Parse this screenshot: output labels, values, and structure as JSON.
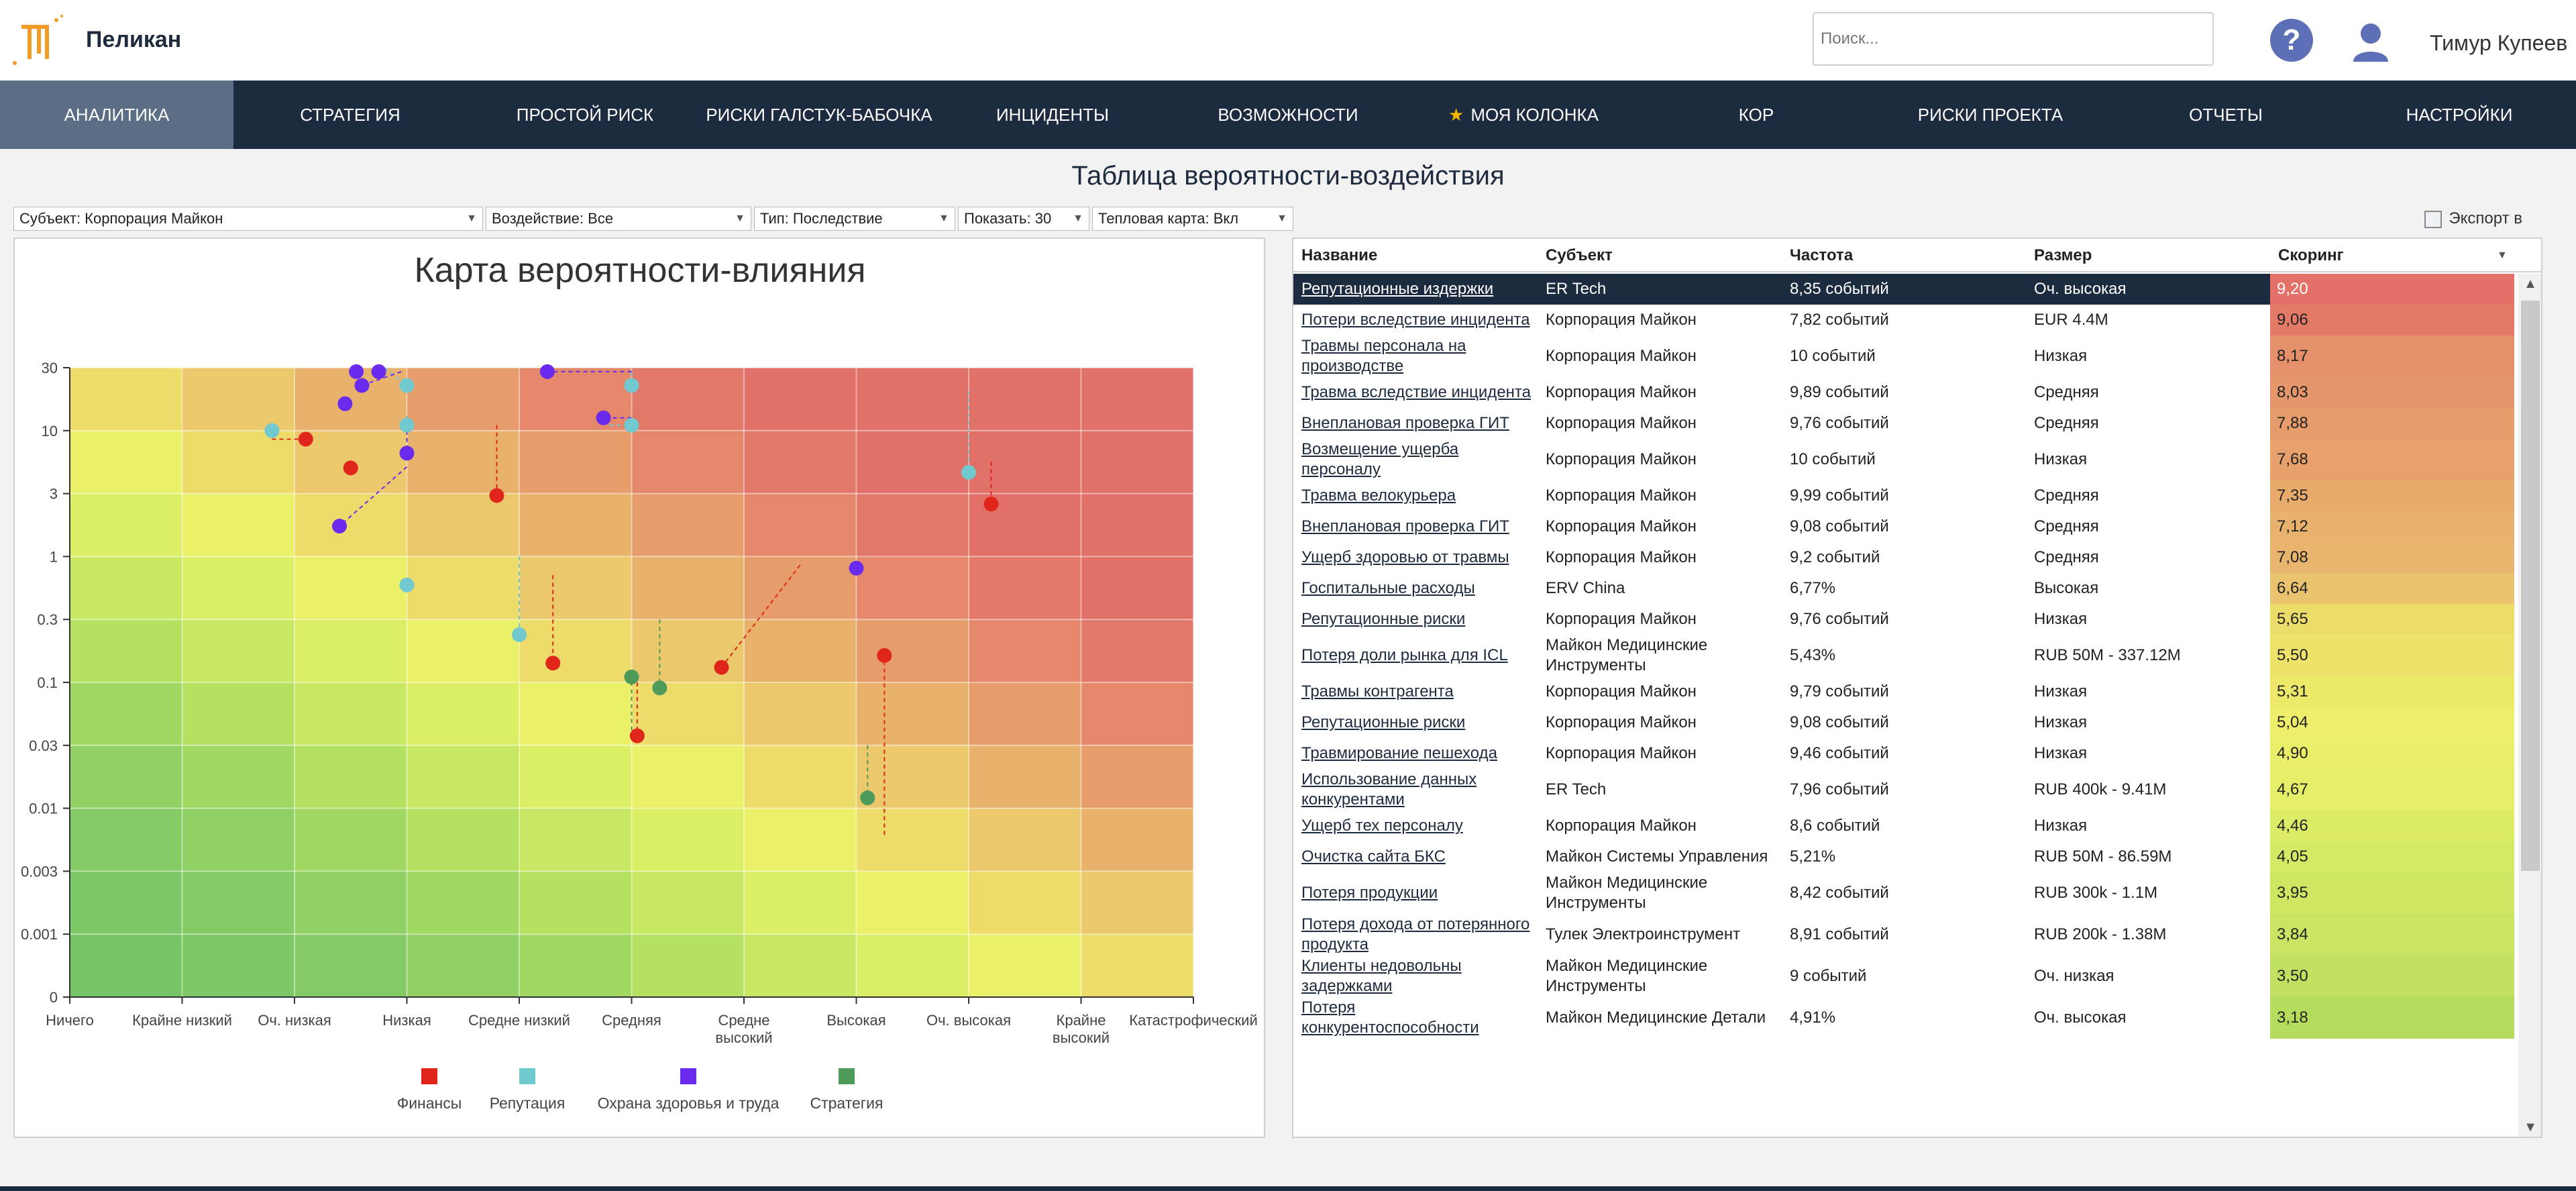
{
  "app": {
    "name": "Пеликан"
  },
  "header": {
    "search_placeholder": "Поиск...",
    "user_name": "Тимур Купеев",
    "help_glyph": "?"
  },
  "nav": [
    {
      "label": "АНАЛИТИКА",
      "active": true
    },
    {
      "label": "СТРАТЕГИЯ"
    },
    {
      "label": "ПРОСТОЙ РИСК"
    },
    {
      "label": "РИСКИ ГАЛСТУК-БАБОЧКА"
    },
    {
      "label": "ИНЦИДЕНТЫ"
    },
    {
      "label": "ВОЗМОЖНОСТИ"
    },
    {
      "label": "МОЯ КОЛОНКА",
      "icon": "star-icon"
    },
    {
      "label": "КОР"
    },
    {
      "label": "РИСКИ ПРОЕКТА"
    },
    {
      "label": "ОТЧЕТЫ"
    },
    {
      "label": "НАСТРОЙКИ"
    }
  ],
  "page": {
    "title": "Таблица вероятности-воздействия"
  },
  "filters": {
    "subject": "Субъект: Корпорация Майкон",
    "impact": "Воздействие: Все",
    "type": "Тип: Последствие",
    "show": "Показать: 30",
    "heatmap": "Тепловая карта: Вкл"
  },
  "export_label": "Экспорт в",
  "colors": {
    "nav_bg": "#1c2b40",
    "finance": "#e0261a",
    "reputation": "#6fc9cf",
    "health": "#6a2bef",
    "strategy": "#4e9a5a"
  },
  "chart_data": {
    "type": "scatter",
    "title": "Карта вероятности-влияния",
    "x_categories": [
      "Ничего",
      "Крайне низкий",
      "Оч. низкая",
      "Низкая",
      "Средне низкий",
      "Средняя",
      "Средне высокий",
      "Высокая",
      "Оч. высокая",
      "Крайне высокий",
      "Катастрофический"
    ],
    "y_ticks": [
      "0",
      "0.001",
      "0.003",
      "0.01",
      "0.03",
      "0.1",
      "0.3",
      "1",
      "3",
      "10",
      "30"
    ],
    "y_scale": "log",
    "grid": true,
    "legend_position": "bottom",
    "heatmap": true,
    "series": [
      {
        "name": "Финансы",
        "color": "#e0261a",
        "points": [
          {
            "x": 2.1,
            "y": 8.5,
            "from": [
              1.8,
              8.5
            ]
          },
          {
            "x": 2.5,
            "y": 4.9
          },
          {
            "x": 3.8,
            "y": 2.9,
            "from": [
              3.8,
              11
            ]
          },
          {
            "x": 4.3,
            "y": 0.14,
            "from": [
              4.3,
              0.7
            ]
          },
          {
            "x": 5.05,
            "y": 0.036,
            "from": [
              5.05,
              0.1
            ]
          },
          {
            "x": 5.8,
            "y": 0.13,
            "from": [
              6.5,
              0.85
            ]
          },
          {
            "x": 7.25,
            "y": 0.16,
            "from": [
              7.25,
              0.006
            ]
          },
          {
            "x": 8.2,
            "y": 2.5,
            "from": [
              8.2,
              5.5
            ]
          }
        ]
      },
      {
        "name": "Репутация",
        "color": "#6fc9cf",
        "points": [
          {
            "x": 1.8,
            "y": 10
          },
          {
            "x": 3.0,
            "y": 22,
            "from": [
              2.8,
              30
            ]
          },
          {
            "x": 3.0,
            "y": 11,
            "from": [
              3.0,
              13
            ]
          },
          {
            "x": 3.0,
            "y": 0.58
          },
          {
            "x": 4.0,
            "y": 0.23,
            "from": [
              4.0,
              1.0
            ]
          },
          {
            "x": 5.0,
            "y": 22,
            "from": [
              5.0,
              28
            ]
          },
          {
            "x": 5.0,
            "y": 11,
            "from": [
              4.8,
              11
            ]
          },
          {
            "x": 8.0,
            "y": 4.5,
            "from": [
              8.0,
              20
            ]
          }
        ]
      },
      {
        "name": "Охрана здоровья и труда",
        "color": "#6a2bef",
        "points": [
          {
            "x": 2.55,
            "y": 28
          },
          {
            "x": 2.6,
            "y": 22,
            "from": [
              2.95,
              28
            ]
          },
          {
            "x": 2.75,
            "y": 28
          },
          {
            "x": 2.45,
            "y": 16
          },
          {
            "x": 3.0,
            "y": 6.5,
            "from": [
              3.0,
              10
            ]
          },
          {
            "x": 2.4,
            "y": 1.7,
            "from": [
              3.0,
              5.0
            ]
          },
          {
            "x": 4.25,
            "y": 28,
            "from": [
              5.0,
              28
            ]
          },
          {
            "x": 4.75,
            "y": 12.5,
            "from": [
              5.0,
              12.5
            ]
          },
          {
            "x": 7.0,
            "y": 0.8
          }
        ]
      },
      {
        "name": "Стратегия",
        "color": "#4e9a5a",
        "points": [
          {
            "x": 5.0,
            "y": 0.11,
            "from": [
              5.0,
              0.04
            ]
          },
          {
            "x": 5.25,
            "y": 0.09,
            "from": [
              5.25,
              0.3
            ]
          },
          {
            "x": 7.1,
            "y": 0.012,
            "from": [
              7.1,
              0.03
            ]
          }
        ]
      }
    ]
  },
  "table": {
    "columns": [
      "Название",
      "Субъект",
      "Частота",
      "Размер",
      "Скоринг"
    ],
    "rows": [
      {
        "name": "Репутационные издержки",
        "subject": "ER Tech",
        "freq": "8,35 событий",
        "size": "Оч. высокая",
        "score": "9,20",
        "color": "#e37168",
        "selected": true
      },
      {
        "name": "Потери вследствие инцидента",
        "subject": "Корпорация Майкон",
        "freq": "7,82 событий",
        "size": "EUR 4.4M",
        "score": "9,06",
        "color": "#e27a67"
      },
      {
        "name": "Травмы персонала на производстве",
        "subject": "Корпорация Майкон",
        "freq": "10 событий",
        "size": "Низкая",
        "score": "8,17",
        "color": "#e5906a"
      },
      {
        "name": "Травма вследствие инцидента",
        "subject": "Корпорация Майкон",
        "freq": "9,89 событий",
        "size": "Средняя",
        "score": "8,03",
        "color": "#e5966a"
      },
      {
        "name": "Внеплановая проверка ГИТ",
        "subject": "Корпорация Майкон",
        "freq": "9,76 событий",
        "size": "Средняя",
        "score": "7,88",
        "color": "#e69c6b"
      },
      {
        "name": "Возмещение ущерба персоналу",
        "subject": "Корпорация Майкон",
        "freq": "10 событий",
        "size": "Низкая",
        "score": "7,68",
        "color": "#e7a06b"
      },
      {
        "name": "Травма велокурьера",
        "subject": "Корпорация Майкон",
        "freq": "9,99 событий",
        "size": "Средняя",
        "score": "7,35",
        "color": "#e8ab6c"
      },
      {
        "name": "Внеплановая проверка ГИТ",
        "subject": "Корпорация Майкон",
        "freq": "9,08 событий",
        "size": "Средняя",
        "score": "7,12",
        "color": "#e8b16d"
      },
      {
        "name": "Ущерб здоровью от травмы",
        "subject": "Корпорация Майкон",
        "freq": "9,2 событий",
        "size": "Средняя",
        "score": "7,08",
        "color": "#e9b46d"
      },
      {
        "name": "Госпитальные расходы",
        "subject": "ERV China",
        "freq": "6,77%",
        "size": "Высокая",
        "score": "6,64",
        "color": "#eac36e"
      },
      {
        "name": "Репутационные риски",
        "subject": "Корпорация Майкон",
        "freq": "9,76 событий",
        "size": "Низкая",
        "score": "5,65",
        "color": "#ecdc6a"
      },
      {
        "name": "Потеря доли рынка для ICL",
        "subject": "Майкон Медицинские Инструменты",
        "freq": "5,43%",
        "size": "RUB 50M - 337.12M",
        "score": "5,50",
        "color": "#ede26a"
      },
      {
        "name": "Травмы контрагента",
        "subject": "Корпорация Майкон",
        "freq": "9,79 событий",
        "size": "Низкая",
        "score": "5,31",
        "color": "#eee86a"
      },
      {
        "name": "Репутационные риски",
        "subject": "Корпорация Майкон",
        "freq": "9,08 событий",
        "size": "Низкая",
        "score": "5,04",
        "color": "#eeee6a"
      },
      {
        "name": "Травмирование пешехода",
        "subject": "Корпорация Майкон",
        "freq": "9,46 событий",
        "size": "Низкая",
        "score": "4,90",
        "color": "#eaef69"
      },
      {
        "name": "Использование данных конкурентами",
        "subject": "ER Tech",
        "freq": "7,96 событий",
        "size": "RUB 400k - 9.41M",
        "score": "4,67",
        "color": "#e4ef67"
      },
      {
        "name": "Ущерб тех персоналу",
        "subject": "Корпорация Майкон",
        "freq": "8,6 событий",
        "size": "Низкая",
        "score": "4,46",
        "color": "#dcec66"
      },
      {
        "name": "Очистка сайта БКС",
        "subject": "Майкон Системы Управления",
        "freq": "5,21%",
        "size": "RUB 50M - 86.59M",
        "score": "4,05",
        "color": "#d4e964"
      },
      {
        "name": "Потеря продукции",
        "subject": "Майкон Медицинские Инструменты",
        "freq": "8,42 событий",
        "size": "RUB 300k - 1.1M",
        "score": "3,95",
        "color": "#cee763"
      },
      {
        "name": "Потеря дохода от потерянного продукта",
        "subject": "Тулек Электроинструмент",
        "freq": "8,91 событий",
        "size": "RUB 200k - 1.38M",
        "score": "3,84",
        "color": "#c8e462"
      },
      {
        "name": "Клиенты недовольны задержками",
        "subject": "Майкон Медицинские Инструменты",
        "freq": "9 событий",
        "size": "Оч. низкая",
        "score": "3,50",
        "color": "#bfe060"
      },
      {
        "name": "Потеря конкурентоспособности",
        "subject": "Майкон Медицинские Детали",
        "freq": "4,91%",
        "size": "Оч. высокая",
        "score": "3,18",
        "color": "#b6dc5e"
      }
    ]
  }
}
